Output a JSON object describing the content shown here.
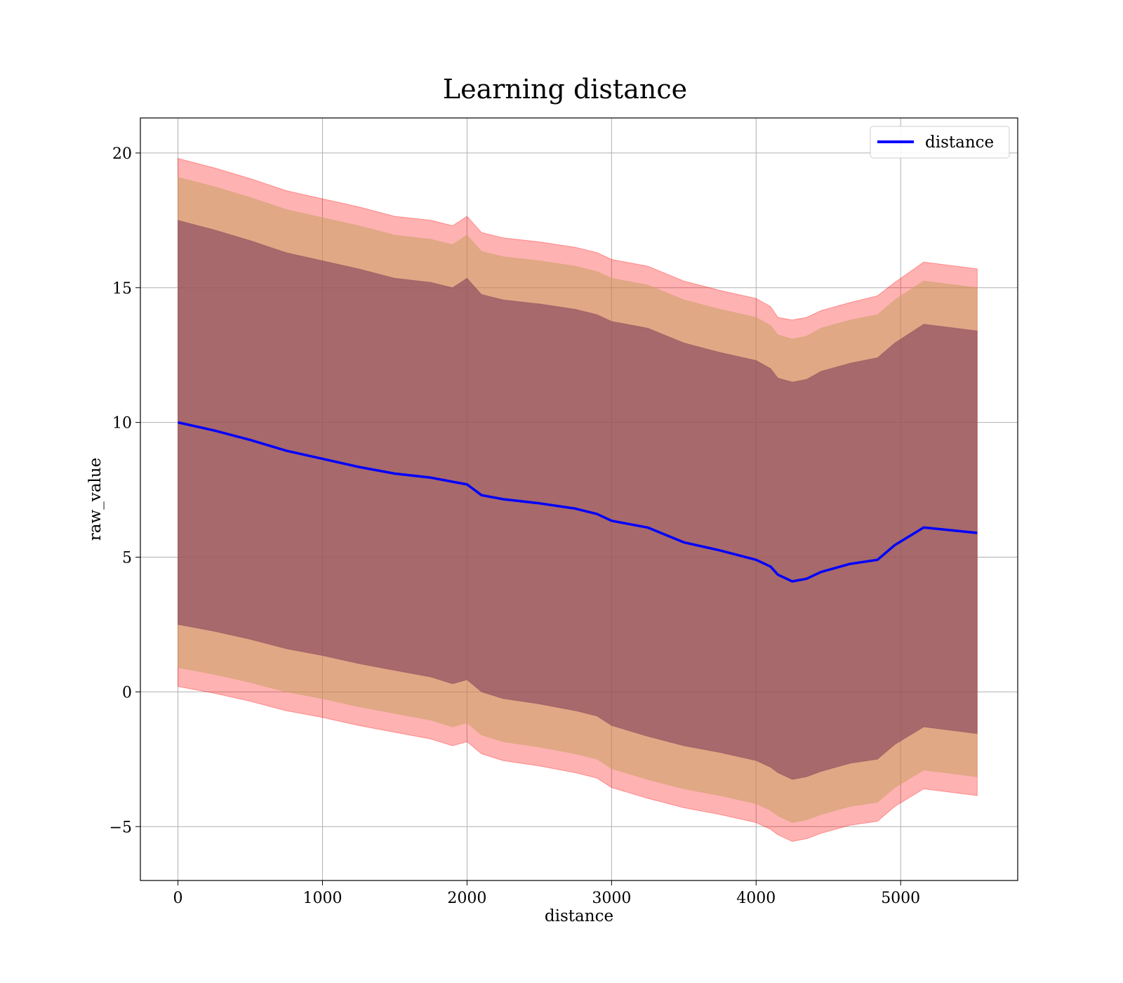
{
  "chart_data": {
    "type": "area",
    "title": "Learning distance",
    "xlabel": "distance",
    "ylabel": "raw_value",
    "xlim": [
      -260,
      5810
    ],
    "ylim": [
      -7.0,
      21.3
    ],
    "xticks": [
      0,
      1000,
      2000,
      3000,
      4000,
      5000
    ],
    "yticks": [
      -5,
      0,
      5,
      10,
      15,
      20
    ],
    "xtick_labels": [
      "0",
      "1000",
      "2000",
      "3000",
      "4000",
      "5000"
    ],
    "ytick_labels": [
      "−5",
      "0",
      "5",
      "10",
      "15",
      "20"
    ],
    "grid": true,
    "legend": {
      "position": "top-right",
      "entries": [
        "distance"
      ]
    },
    "colors": {
      "line": "#0000ff",
      "band_outer": "#ff0000",
      "band_middle": "#c8a060",
      "band_inner": "#80405a"
    },
    "x": [
      0,
      250,
      500,
      750,
      1000,
      1250,
      1500,
      1750,
      1900,
      2000,
      2100,
      2250,
      2500,
      2750,
      2900,
      3000,
      3250,
      3500,
      3750,
      4000,
      4100,
      4150,
      4250,
      4300,
      4350,
      4450,
      4650,
      4840,
      4960,
      5160,
      5530
    ],
    "series": [
      {
        "name": "distance",
        "values": [
          10.0,
          9.7,
          9.35,
          8.95,
          8.65,
          8.35,
          8.1,
          7.95,
          7.8,
          7.7,
          7.3,
          7.15,
          7.0,
          6.8,
          6.6,
          6.35,
          6.1,
          5.55,
          5.25,
          4.9,
          4.65,
          4.35,
          4.1,
          4.15,
          4.2,
          4.45,
          4.75,
          4.9,
          5.45,
          6.1,
          5.9
        ]
      }
    ],
    "bands": [
      {
        "level": "outer",
        "upper": [
          19.8,
          19.45,
          19.05,
          18.6,
          18.3,
          18.0,
          17.65,
          17.5,
          17.3,
          17.65,
          17.05,
          16.85,
          16.7,
          16.5,
          16.3,
          16.05,
          15.8,
          15.25,
          14.9,
          14.6,
          14.3,
          13.9,
          13.8,
          13.85,
          13.9,
          14.15,
          14.45,
          14.7,
          15.2,
          15.95,
          15.7
        ],
        "lower": [
          0.2,
          -0.05,
          -0.35,
          -0.7,
          -0.95,
          -1.25,
          -1.5,
          -1.75,
          -2.0,
          -1.85,
          -2.3,
          -2.55,
          -2.75,
          -3.0,
          -3.2,
          -3.55,
          -3.95,
          -4.3,
          -4.55,
          -4.85,
          -5.1,
          -5.3,
          -5.55,
          -5.5,
          -5.45,
          -5.25,
          -4.95,
          -4.8,
          -4.25,
          -3.6,
          -3.85
        ]
      },
      {
        "level": "middle",
        "upper": [
          19.1,
          18.75,
          18.35,
          17.9,
          17.6,
          17.3,
          16.95,
          16.8,
          16.6,
          16.95,
          16.35,
          16.15,
          16.0,
          15.8,
          15.6,
          15.35,
          15.1,
          14.55,
          14.2,
          13.9,
          13.6,
          13.25,
          13.1,
          13.15,
          13.2,
          13.5,
          13.8,
          14.0,
          14.55,
          15.25,
          15.0
        ],
        "lower": [
          0.9,
          0.65,
          0.35,
          0.0,
          -0.25,
          -0.55,
          -0.8,
          -1.05,
          -1.3,
          -1.15,
          -1.6,
          -1.85,
          -2.05,
          -2.3,
          -2.5,
          -2.85,
          -3.25,
          -3.6,
          -3.85,
          -4.15,
          -4.4,
          -4.6,
          -4.85,
          -4.8,
          -4.75,
          -4.55,
          -4.25,
          -4.1,
          -3.55,
          -2.9,
          -3.15
        ]
      },
      {
        "level": "inner",
        "upper": [
          17.5,
          17.15,
          16.75,
          16.3,
          16.0,
          15.7,
          15.35,
          15.2,
          15.0,
          15.35,
          14.75,
          14.55,
          14.4,
          14.2,
          14.0,
          13.75,
          13.5,
          12.95,
          12.6,
          12.3,
          12.0,
          11.65,
          11.5,
          11.55,
          11.6,
          11.9,
          12.2,
          12.4,
          12.95,
          13.65,
          13.4
        ],
        "lower": [
          2.5,
          2.25,
          1.95,
          1.6,
          1.35,
          1.05,
          0.8,
          0.55,
          0.3,
          0.45,
          0.0,
          -0.25,
          -0.45,
          -0.7,
          -0.9,
          -1.25,
          -1.65,
          -2.0,
          -2.25,
          -2.55,
          -2.8,
          -3.0,
          -3.25,
          -3.2,
          -3.15,
          -2.95,
          -2.65,
          -2.5,
          -1.95,
          -1.3,
          -1.55
        ]
      }
    ]
  }
}
